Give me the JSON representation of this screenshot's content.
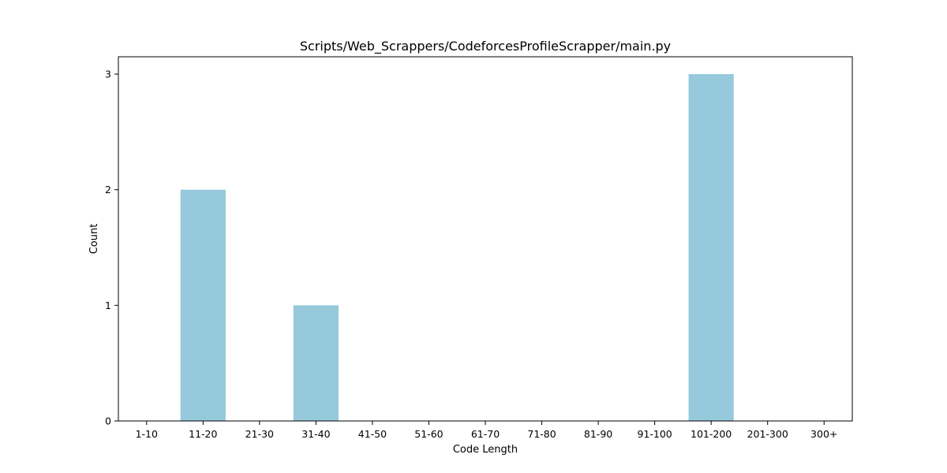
{
  "chart_data": {
    "type": "bar",
    "title": "Scripts/Web_Scrappers/CodeforcesProfileScrapper/main.py",
    "xlabel": "Code Length",
    "ylabel": "Count",
    "categories": [
      "1-10",
      "11-20",
      "21-30",
      "31-40",
      "41-50",
      "51-60",
      "61-70",
      "71-80",
      "81-90",
      "91-100",
      "101-200",
      "201-300",
      "300+"
    ],
    "values": [
      0,
      2,
      0,
      1,
      0,
      0,
      0,
      0,
      0,
      0,
      3,
      0,
      0
    ],
    "yticks": [
      0,
      1,
      2,
      3
    ],
    "ylim": [
      0,
      3.15
    ],
    "grid": false,
    "bar_color": "#96c9dc"
  }
}
